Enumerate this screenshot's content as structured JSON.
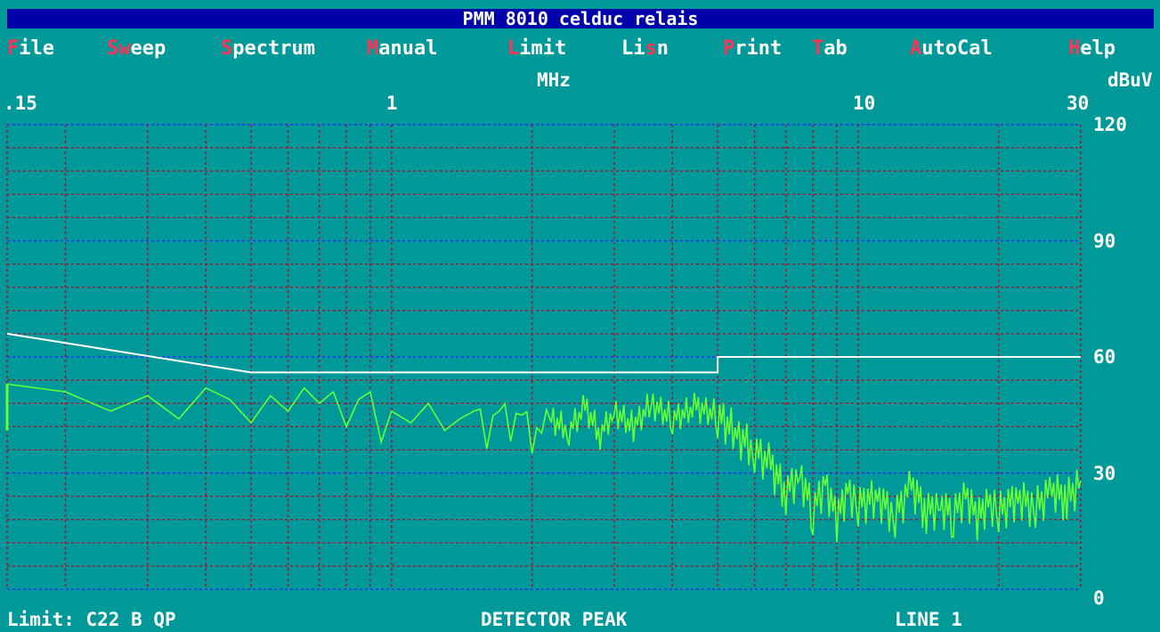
{
  "window": {
    "title": "PMM 8010 celduc relais"
  },
  "menu": {
    "items": [
      {
        "hot": "F",
        "rest": "ile"
      },
      {
        "hot": "S",
        "pre": "",
        "rest": "eep",
        "mid": "w"
      },
      {
        "hot": "S",
        "rest": "pectrum"
      },
      {
        "hot": "M",
        "rest": "anual"
      },
      {
        "hot": "L",
        "rest": "imit"
      },
      {
        "pre": "Li",
        "hot": "s",
        "rest": "n"
      },
      {
        "hot": "P",
        "rest": "rint"
      },
      {
        "hot": "T",
        "rest": "ab"
      },
      {
        "hot": "A",
        "rest": "utoCal"
      },
      {
        "hot": "H",
        "rest": "elp"
      }
    ]
  },
  "footer": {
    "limit": "Limit: C22 B QP",
    "detector": "DETECTOR PEAK",
    "line": "LINE 1"
  },
  "colors": {
    "background": "#009999",
    "title_bg": "#0000aa",
    "hotkey": "#ff3355",
    "trace": "#66ff33",
    "limit": "#ffffff",
    "grid_major": "#2a2aff",
    "grid_minor": "#aa1133"
  },
  "chart_data": {
    "type": "line",
    "x_scale": "log",
    "xlabel": "MHz",
    "ylabel": "dBuV",
    "xlim": [
      0.15,
      30
    ],
    "ylim": [
      0,
      120
    ],
    "x_ticks": [
      ".15",
      "1",
      "10",
      "30"
    ],
    "y_ticks": [
      "120",
      "90",
      "60",
      "30",
      "0"
    ],
    "limit_line": {
      "name": "C22 B QP",
      "x": [
        0.15,
        0.5,
        5,
        5,
        30
      ],
      "y": [
        66,
        56,
        56,
        60,
        60
      ]
    },
    "peak_trace": {
      "name": "DETECTOR PEAK",
      "x": [
        0.15,
        0.2,
        0.25,
        0.3,
        0.35,
        0.4,
        0.45,
        0.5,
        0.55,
        0.6,
        0.65,
        0.7,
        0.75,
        0.8,
        0.85,
        0.9,
        0.95,
        1.0,
        1.1,
        1.2,
        1.3,
        1.4,
        1.5,
        1.6,
        1.7,
        1.8,
        1.9,
        2.0,
        2.2,
        2.4,
        2.6,
        2.8,
        3.0,
        3.3,
        3.6,
        4.0,
        4.5,
        5.0,
        5.5,
        6.0,
        6.5,
        7.0,
        7.5,
        8.0,
        8.5,
        9.0,
        9.5,
        10,
        11,
        12,
        13,
        14,
        15,
        16,
        17,
        18,
        19,
        20,
        22,
        24,
        26,
        28,
        30
      ],
      "y": [
        53,
        51,
        46,
        50,
        44,
        52,
        49,
        43,
        50,
        46,
        52,
        48,
        51,
        42,
        49,
        51,
        38,
        46,
        43,
        48,
        41,
        44,
        46,
        40,
        47,
        42,
        46,
        39,
        44,
        41,
        47,
        40,
        46,
        42,
        48,
        44,
        47,
        45,
        40,
        36,
        32,
        25,
        30,
        20,
        28,
        18,
        26,
        22,
        24,
        19,
        27,
        20,
        22,
        19,
        25,
        18,
        23,
        20,
        24,
        21,
        26,
        23,
        28
      ]
    }
  }
}
